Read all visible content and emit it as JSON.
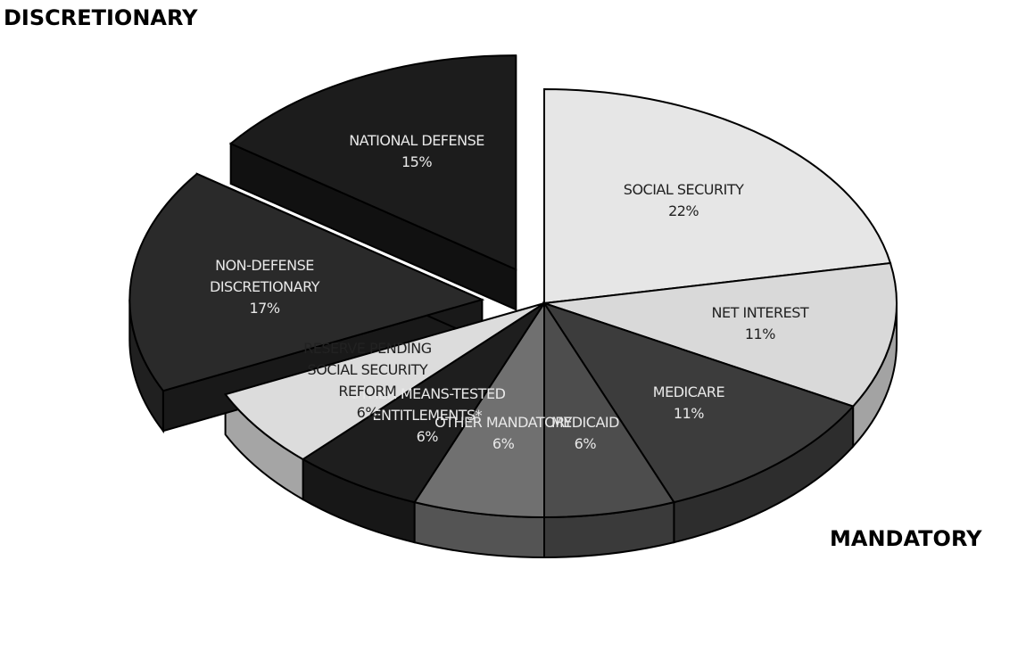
{
  "chart_data": {
    "type": "pie",
    "categories": [
      "SOCIAL SECURITY",
      "NET INTEREST",
      "MEDICARE",
      "MEDICAID",
      "OTHER MANDATORY",
      "OTHER MEANS-TESTED ENTITLEMENTS*",
      "RESERVE PENDING SOCIAL SECURITY REFORM",
      "NON-DEFENSE DISCRETIONARY",
      "NATIONAL DEFENSE"
    ],
    "values": [
      22,
      11,
      11,
      6,
      6,
      6,
      6,
      17,
      15
    ],
    "value_labels": [
      "22%",
      "11%",
      "11%",
      "6%",
      "6%",
      "6%",
      "6%",
      "17%",
      "15%"
    ],
    "colors": [
      "#e6e6e6",
      "#d9d9d9",
      "#3c3c3c",
      "#4d4d4d",
      "#707070",
      "#1e1e1e",
      "#dcdcdc",
      "#2a2a2a",
      "#1c1c1c"
    ],
    "explode": [
      false,
      false,
      false,
      false,
      false,
      false,
      false,
      true,
      true
    ],
    "annotations": [
      "DISCRETIONARY",
      "MANDATORY"
    ]
  }
}
